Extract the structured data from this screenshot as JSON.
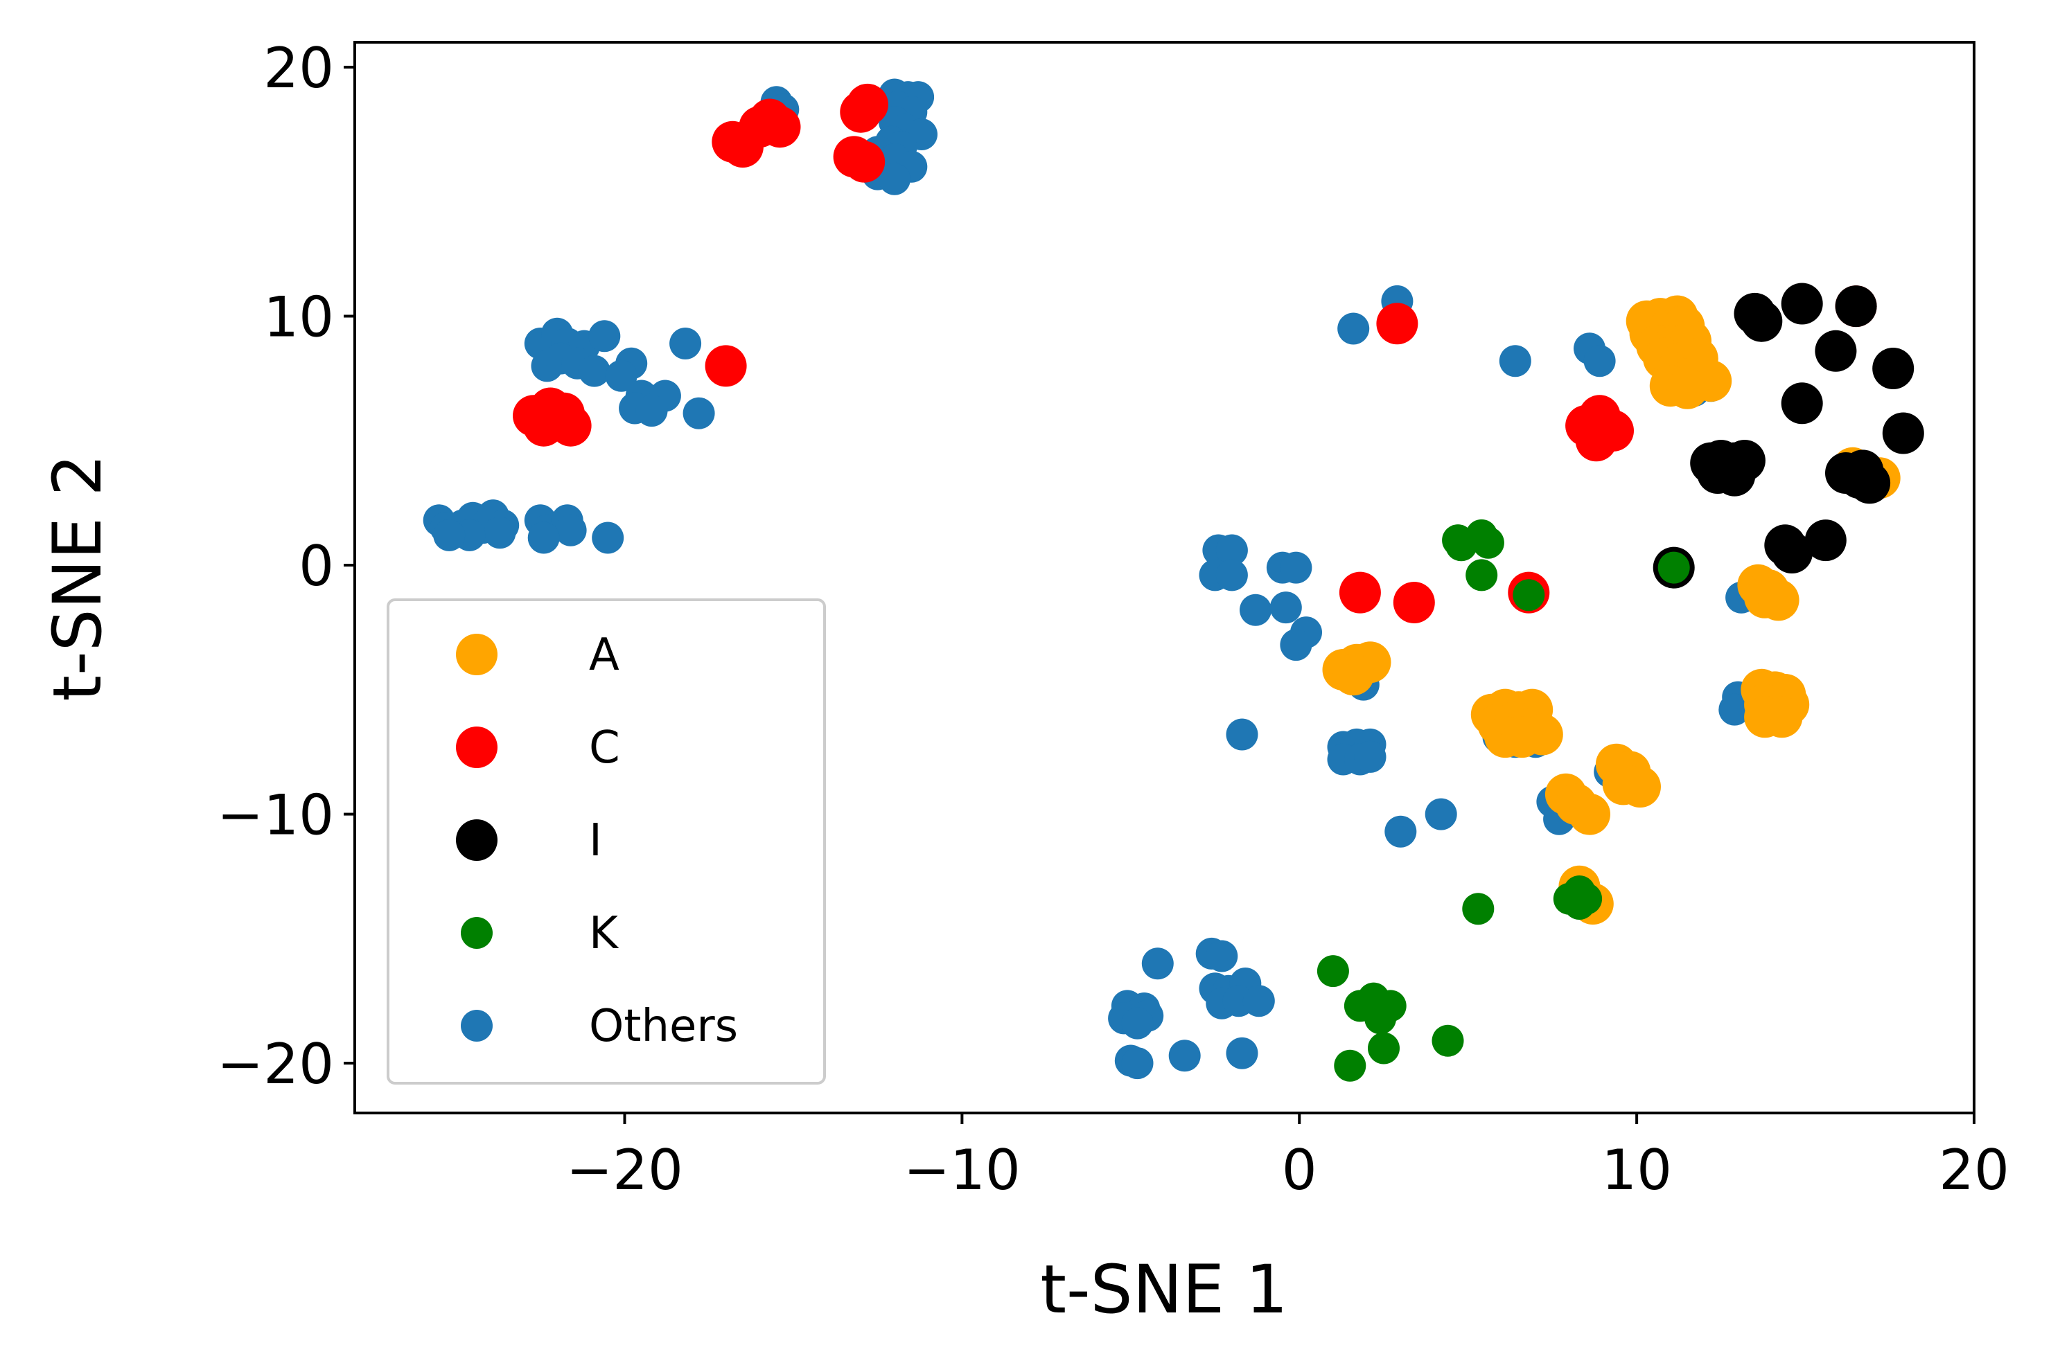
{
  "chart_data": {
    "type": "scatter",
    "title": "",
    "xlabel": "t-SNE 1",
    "ylabel": "t-SNE 2",
    "xlim": [
      -28,
      20
    ],
    "ylim": [
      -22,
      21
    ],
    "xticks": [
      {
        "value": -20,
        "label": "−20"
      },
      {
        "value": -10,
        "label": "−10"
      },
      {
        "value": 0,
        "label": "0"
      },
      {
        "value": 10,
        "label": "10"
      },
      {
        "value": 20,
        "label": "20"
      }
    ],
    "yticks": [
      {
        "value": -20,
        "label": "−20"
      },
      {
        "value": -10,
        "label": "−10"
      },
      {
        "value": 0,
        "label": "0"
      },
      {
        "value": 10,
        "label": "10"
      },
      {
        "value": 20,
        "label": "20"
      }
    ],
    "grid": false,
    "legend_position": "lower-left",
    "series": [
      {
        "name": "Others",
        "color": "#1f77b4",
        "marker": "small",
        "points": [
          [
            -15.5,
            18.6
          ],
          [
            -15.3,
            18.3
          ],
          [
            -15.8,
            18.0
          ],
          [
            -12,
            18.9
          ],
          [
            -11.6,
            18.8
          ],
          [
            -11.3,
            18.8
          ],
          [
            -11.9,
            18.4
          ],
          [
            -11.5,
            18.2
          ],
          [
            -12,
            17.8
          ],
          [
            -11.7,
            17.5
          ],
          [
            -11.2,
            17.3
          ],
          [
            -12.1,
            17.0
          ],
          [
            -11.8,
            16.8
          ],
          [
            -12.5,
            16.6
          ],
          [
            -12,
            16.3
          ],
          [
            -11.5,
            16.0
          ],
          [
            -12.5,
            15.7
          ],
          [
            -12,
            15.5
          ],
          [
            -22.5,
            8.9
          ],
          [
            -22,
            9.3
          ],
          [
            -21.7,
            8.9
          ],
          [
            -21.2,
            8.8
          ],
          [
            -20.6,
            9.2
          ],
          [
            -22.3,
            8.0
          ],
          [
            -21.9,
            8.3
          ],
          [
            -21.4,
            8.1
          ],
          [
            -20.9,
            7.8
          ],
          [
            -19.8,
            8.1
          ],
          [
            -20.1,
            7.6
          ],
          [
            -19.5,
            6.8
          ],
          [
            -19.2,
            6.6
          ],
          [
            -18.8,
            6.8
          ],
          [
            -19.7,
            6.3
          ],
          [
            -19.2,
            6.2
          ],
          [
            -18.2,
            8.9
          ],
          [
            -17.8,
            6.1
          ],
          [
            -25.5,
            1.8
          ],
          [
            -25.3,
            1.5
          ],
          [
            -24.8,
            1.6
          ],
          [
            -24.5,
            1.9
          ],
          [
            -24.2,
            1.5
          ],
          [
            -23.9,
            2.0
          ],
          [
            -23.6,
            1.6
          ],
          [
            -23.7,
            1.3
          ],
          [
            -24.6,
            1.2
          ],
          [
            -25.2,
            1.2
          ],
          [
            -22.5,
            1.8
          ],
          [
            -22.3,
            1.4
          ],
          [
            -21.7,
            1.8
          ],
          [
            -21.6,
            1.4
          ],
          [
            -22.4,
            1.1
          ],
          [
            -20.5,
            1.1
          ],
          [
            2.9,
            10.6
          ],
          [
            1.6,
            9.5
          ],
          [
            6.4,
            8.2
          ],
          [
            8.6,
            8.7
          ],
          [
            8.9,
            8.2
          ],
          [
            10.8,
            8.5
          ],
          [
            11.5,
            8.0
          ],
          [
            11,
            7.2
          ],
          [
            11.7,
            7.0
          ],
          [
            12.2,
            7.2
          ],
          [
            -2.4,
            0.6
          ],
          [
            -2,
            0.6
          ],
          [
            -2.5,
            -0.4
          ],
          [
            -2,
            -0.4
          ],
          [
            -0.5,
            -0.1
          ],
          [
            -0.1,
            -0.1
          ],
          [
            -1.3,
            -1.8
          ],
          [
            -0.4,
            -1.7
          ],
          [
            0.2,
            -2.7
          ],
          [
            -0.1,
            -3.2
          ],
          [
            1.5,
            -4.4
          ],
          [
            1.9,
            -4.8
          ],
          [
            -1.7,
            -6.8
          ],
          [
            1.3,
            -7.3
          ],
          [
            1.7,
            -7.2
          ],
          [
            2.1,
            -7.2
          ],
          [
            1.3,
            -7.8
          ],
          [
            1.8,
            -7.8
          ],
          [
            2.1,
            -7.7
          ],
          [
            3,
            -10.7
          ],
          [
            4.2,
            -10.0
          ],
          [
            5.7,
            -6.2
          ],
          [
            6.1,
            -6.5
          ],
          [
            5.9,
            -6.9
          ],
          [
            6.4,
            -7.1
          ],
          [
            7,
            -7.1
          ],
          [
            7.5,
            -9.5
          ],
          [
            7.9,
            -9.8
          ],
          [
            7.7,
            -10.2
          ],
          [
            9.2,
            -8.3
          ],
          [
            9.7,
            -8.8
          ],
          [
            13,
            -5.3
          ],
          [
            12.9,
            -5.8
          ],
          [
            13.1,
            -1.3
          ],
          [
            13.6,
            -1.3
          ],
          [
            -4.2,
            -16.0
          ],
          [
            -2.6,
            -15.6
          ],
          [
            -2.3,
            -15.7
          ],
          [
            -2.5,
            -17.0
          ],
          [
            -2.1,
            -17.1
          ],
          [
            -1.6,
            -16.8
          ],
          [
            -2.3,
            -17.6
          ],
          [
            -1.8,
            -17.5
          ],
          [
            -1.2,
            -17.5
          ],
          [
            -5.1,
            -17.7
          ],
          [
            -4.6,
            -17.8
          ],
          [
            -4.5,
            -18.1
          ],
          [
            -5.2,
            -18.2
          ],
          [
            -4.8,
            -18.4
          ],
          [
            -5,
            -19.9
          ],
          [
            -4.8,
            -20.0
          ],
          [
            -3.4,
            -19.7
          ],
          [
            -1.7,
            -19.6
          ]
        ]
      },
      {
        "name": "C",
        "color": "#ff0000",
        "marker": "large",
        "points": [
          [
            -16.8,
            17.0
          ],
          [
            -16.5,
            16.8
          ],
          [
            -16,
            17.6
          ],
          [
            -15.7,
            17.9
          ],
          [
            -15.4,
            17.6
          ],
          [
            -13,
            18.2
          ],
          [
            -12.8,
            18.5
          ],
          [
            -13.2,
            16.4
          ],
          [
            -12.9,
            16.2
          ],
          [
            -17,
            8.0
          ],
          [
            -22.7,
            6.0
          ],
          [
            -22.4,
            5.6
          ],
          [
            -22.1,
            5.9
          ],
          [
            -21.8,
            6.1
          ],
          [
            -22.2,
            6.3
          ],
          [
            -21.6,
            5.6
          ],
          [
            2.9,
            9.7
          ],
          [
            8.5,
            5.6
          ],
          [
            8.9,
            6.0
          ],
          [
            9.3,
            5.4
          ],
          [
            8.8,
            5.0
          ],
          [
            1.8,
            -1.1
          ],
          [
            3.4,
            -1.5
          ],
          [
            6.8,
            -1.1
          ],
          [
            16.5,
            10.4
          ]
        ]
      },
      {
        "name": "A",
        "color": "#ffa500",
        "marker": "large",
        "points": [
          [
            10.3,
            9.8
          ],
          [
            10.7,
            9.9
          ],
          [
            11.2,
            10.0
          ],
          [
            10.4,
            9.3
          ],
          [
            10.9,
            9.4
          ],
          [
            11.4,
            9.6
          ],
          [
            10.6,
            8.8
          ],
          [
            11.1,
            8.8
          ],
          [
            11.6,
            9.0
          ],
          [
            10.8,
            8.3
          ],
          [
            11.3,
            8.1
          ],
          [
            11.8,
            8.3
          ],
          [
            11.1,
            7.6
          ],
          [
            11.6,
            7.5
          ],
          [
            12.2,
            7.4
          ],
          [
            11,
            7.2
          ],
          [
            11.5,
            7.1
          ],
          [
            13.6,
            -0.8
          ],
          [
            13.9,
            -1.0
          ],
          [
            13.8,
            -1.3
          ],
          [
            14.2,
            -1.4
          ],
          [
            1.3,
            -4.2
          ],
          [
            1.7,
            -4.0
          ],
          [
            2.1,
            -3.9
          ],
          [
            1.6,
            -4.4
          ],
          [
            5.7,
            -6.0
          ],
          [
            6.1,
            -5.8
          ],
          [
            6.5,
            -5.9
          ],
          [
            6.9,
            -5.8
          ],
          [
            5.9,
            -6.4
          ],
          [
            6.4,
            -6.3
          ],
          [
            6.8,
            -6.6
          ],
          [
            7.2,
            -6.8
          ],
          [
            6.1,
            -6.9
          ],
          [
            6.6,
            -6.9
          ],
          [
            13.7,
            -5.0
          ],
          [
            14.1,
            -5.1
          ],
          [
            14.4,
            -5.2
          ],
          [
            13.8,
            -5.6
          ],
          [
            14.2,
            -5.7
          ],
          [
            14.5,
            -5.6
          ],
          [
            13.8,
            -6.1
          ],
          [
            14.3,
            -6.1
          ],
          [
            9.4,
            -8.0
          ],
          [
            9.8,
            -8.3
          ],
          [
            10.1,
            -8.9
          ],
          [
            9.6,
            -8.8
          ],
          [
            7.9,
            -9.2
          ],
          [
            8.2,
            -9.6
          ],
          [
            8.6,
            -10.0
          ],
          [
            8.3,
            -12.9
          ],
          [
            8.7,
            -13.6
          ],
          [
            16.4,
            3.9
          ],
          [
            17.2,
            3.5
          ]
        ]
      },
      {
        "name": "I",
        "color": "#000000",
        "marker": "large",
        "points": [
          [
            13.5,
            10.1
          ],
          [
            13.7,
            9.8
          ],
          [
            14.9,
            10.5
          ],
          [
            16.5,
            10.4
          ],
          [
            15.9,
            8.6
          ],
          [
            17.6,
            7.9
          ],
          [
            14.9,
            6.5
          ],
          [
            17.9,
            5.3
          ],
          [
            12.2,
            4.1
          ],
          [
            12.5,
            4.2
          ],
          [
            12.9,
            4.1
          ],
          [
            13.2,
            4.2
          ],
          [
            12.4,
            3.7
          ],
          [
            12.9,
            3.6
          ],
          [
            16.2,
            3.7
          ],
          [
            16.6,
            3.5
          ],
          [
            16.9,
            3.3
          ],
          [
            16.7,
            3.8
          ],
          [
            14.4,
            0.8
          ],
          [
            14.6,
            0.5
          ],
          [
            15.6,
            1.0
          ],
          [
            11.1,
            -0.1
          ]
        ]
      },
      {
        "name": "K",
        "color": "#008000",
        "marker": "small",
        "points": [
          [
            4.7,
            1.0
          ],
          [
            5.4,
            1.2
          ],
          [
            5.6,
            0.9
          ],
          [
            4.8,
            0.8
          ],
          [
            5.4,
            -0.4
          ],
          [
            6.8,
            -1.2
          ],
          [
            11.1,
            -0.1
          ],
          [
            5.3,
            -13.8
          ],
          [
            8,
            -13.4
          ],
          [
            8.3,
            -13.6
          ],
          [
            8.5,
            -13.4
          ],
          [
            8.3,
            -13.1
          ],
          [
            1,
            -16.3
          ],
          [
            1.8,
            -17.7
          ],
          [
            2.2,
            -17.4
          ],
          [
            2.5,
            -17.8
          ],
          [
            2.7,
            -17.7
          ],
          [
            2.4,
            -18.2
          ],
          [
            2.5,
            -19.4
          ],
          [
            1.5,
            -20.1
          ],
          [
            4.4,
            -19.1
          ]
        ]
      }
    ],
    "legend": [
      {
        "label": "A",
        "color": "#ffa500",
        "marker": "large"
      },
      {
        "label": "C",
        "color": "#ff0000",
        "marker": "large"
      },
      {
        "label": "I",
        "color": "#000000",
        "marker": "large"
      },
      {
        "label": "K",
        "color": "#008000",
        "marker": "small"
      },
      {
        "label": "Others",
        "color": "#1f77b4",
        "marker": "small"
      }
    ]
  }
}
